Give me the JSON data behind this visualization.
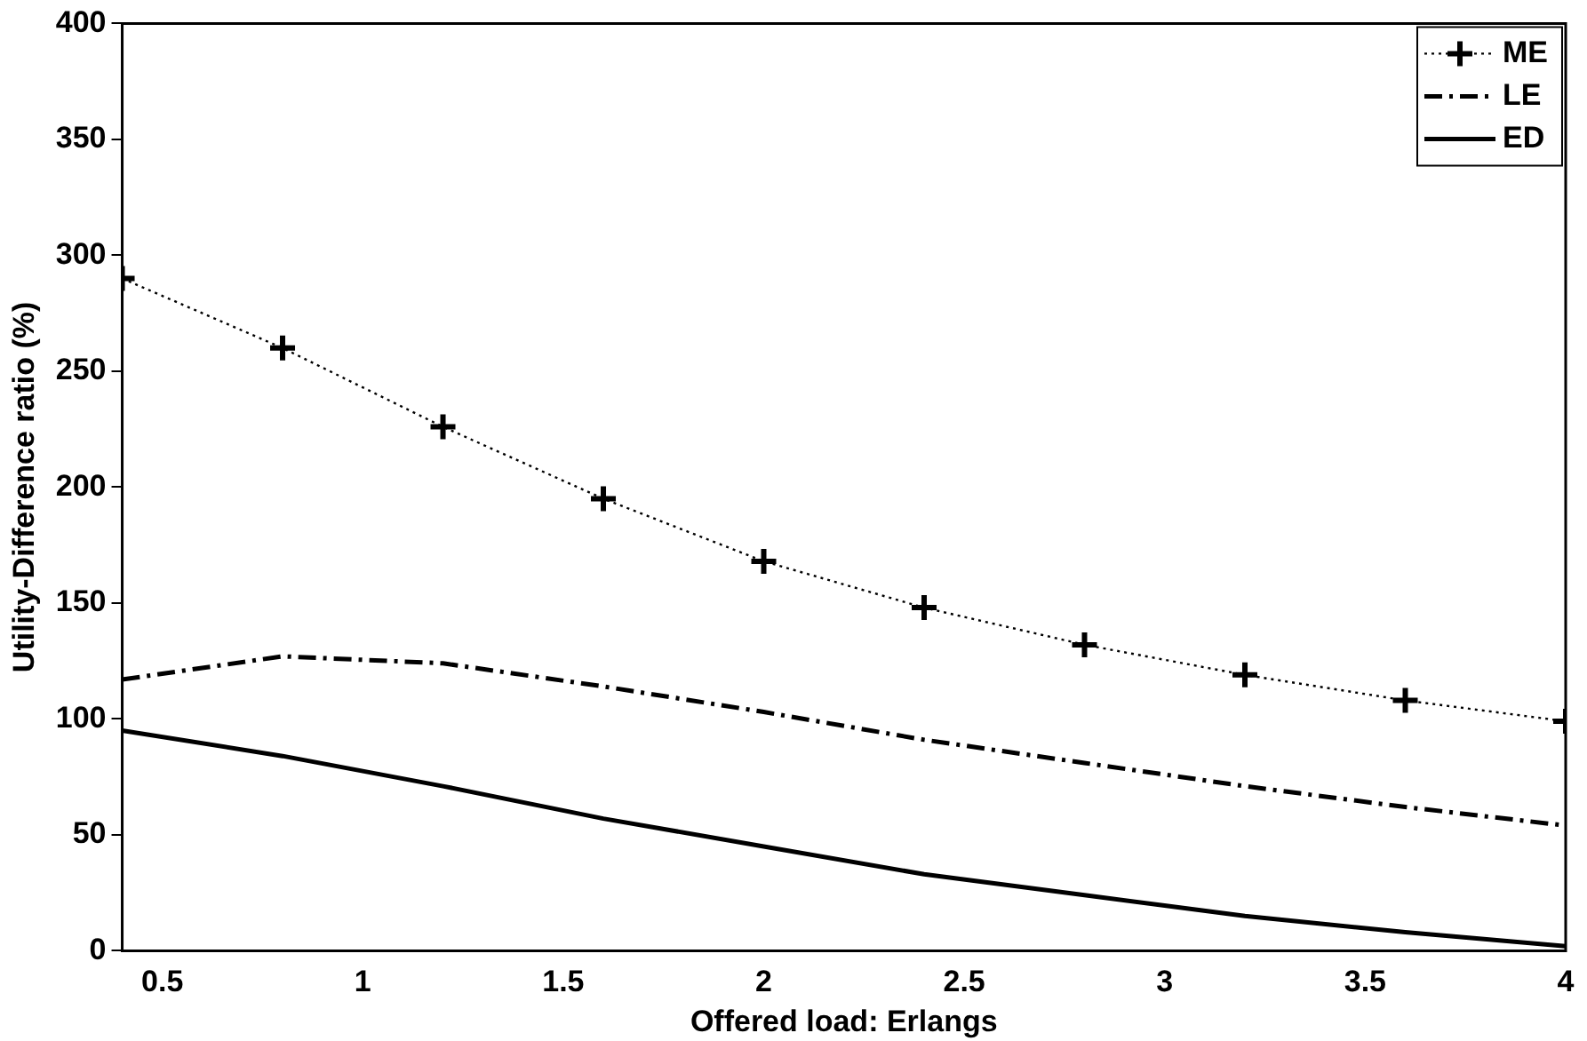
{
  "chart_data": {
    "type": "line",
    "xlabel": "Offered load: Erlangs",
    "ylabel": "Utility-Difference ratio (%)",
    "x": [
      0.4,
      0.8,
      1.2,
      1.6,
      2.0,
      2.4,
      2.8,
      3.2,
      3.6,
      4.0
    ],
    "series": [
      {
        "name": "ME",
        "color": "#000000",
        "marker": "cross",
        "line_style": "dotted",
        "values": [
          290,
          260,
          226,
          195,
          168,
          148,
          132,
          119,
          108,
          99
        ]
      },
      {
        "name": "LE",
        "color": "#000000",
        "marker": "none",
        "line_style": "dashed",
        "values": [
          117,
          127,
          124,
          114,
          103,
          91,
          81,
          71,
          62,
          54
        ]
      },
      {
        "name": "ED",
        "color": "#000000",
        "marker": "none",
        "line_style": "solid",
        "values": [
          95,
          84,
          71,
          57,
          45,
          33,
          24,
          15,
          8,
          2
        ]
      }
    ],
    "xlim": [
      0.4,
      4
    ],
    "xticks": [
      0.5,
      1,
      1.5,
      2,
      2.5,
      3,
      3.5,
      4
    ],
    "ylim": [
      0,
      400
    ],
    "yticks": [
      0,
      50,
      100,
      150,
      200,
      250,
      300,
      350,
      400
    ],
    "grid": false,
    "legend": "top right"
  }
}
